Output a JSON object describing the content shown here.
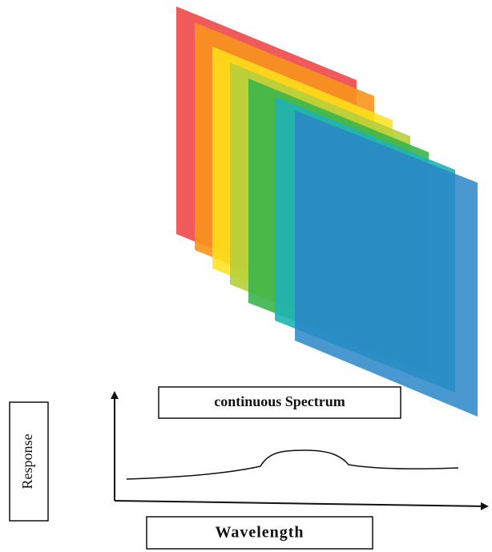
{
  "labels": {
    "spectrum": "continuous Spectrum",
    "y_axis": "Response",
    "x_axis": "Wavelength"
  }
}
